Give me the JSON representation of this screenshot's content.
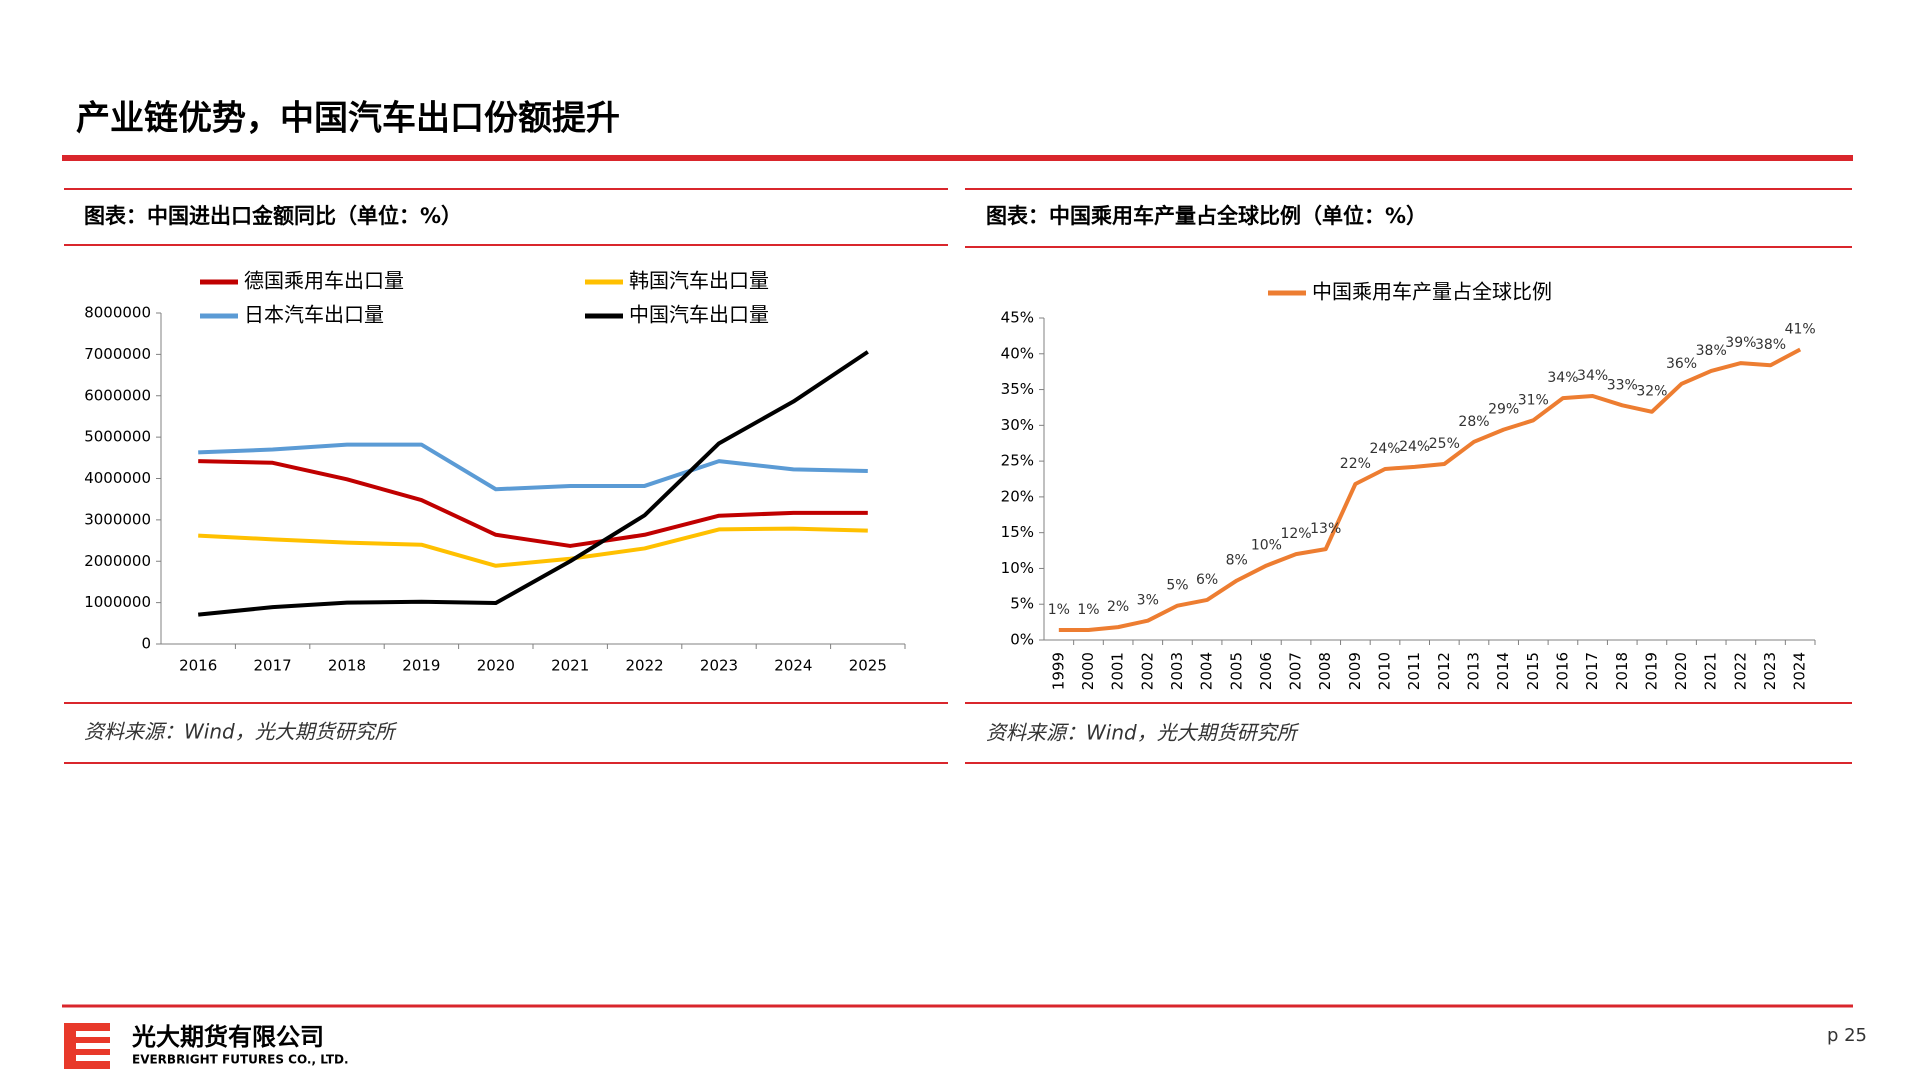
{
  "header": {
    "title": "产业链优势，中国汽车出口份额提升"
  },
  "chart_data": [
    {
      "type": "line",
      "title": "图表：中国进出口金额同比（单位：%）",
      "source": "资料来源：Wind，光大期货研究所",
      "categories": [
        "2016",
        "2017",
        "2018",
        "2019",
        "2020",
        "2021",
        "2022",
        "2023",
        "2024",
        "2025"
      ],
      "series": [
        {
          "name": "德国乘用车出口量",
          "color": "#c00000",
          "values": [
            4420000,
            4380000,
            3980000,
            3480000,
            2640000,
            2370000,
            2640000,
            3100000,
            3170000,
            3170000
          ]
        },
        {
          "name": "韩国汽车出口量",
          "color": "#ffc000",
          "values": [
            2620000,
            2530000,
            2450000,
            2400000,
            1890000,
            2060000,
            2310000,
            2770000,
            2790000,
            2740000
          ]
        },
        {
          "name": "日本汽车出口量",
          "color": "#5b9bd5",
          "values": [
            4630000,
            4700000,
            4820000,
            4820000,
            3740000,
            3820000,
            3820000,
            4420000,
            4220000,
            4180000
          ]
        },
        {
          "name": "中国汽车出口量",
          "color": "#000000",
          "values": [
            710000,
            890000,
            1000000,
            1020000,
            990000,
            2000000,
            3110000,
            4850000,
            5860000,
            7060000
          ]
        }
      ],
      "ylim": [
        0,
        8000000
      ],
      "yticks": [
        0,
        1000000,
        2000000,
        3000000,
        4000000,
        5000000,
        6000000,
        7000000,
        8000000
      ],
      "grid": false,
      "legend": "top"
    },
    {
      "type": "line",
      "title": "图表：中国乘用车产量占全球比例（单位：%）",
      "source": "资料来源：Wind，光大期货研究所",
      "categories": [
        "1999",
        "2000",
        "2001",
        "2002",
        "2003",
        "2004",
        "2005",
        "2006",
        "2007",
        "2008",
        "2009",
        "2010",
        "2011",
        "2012",
        "2013",
        "2014",
        "2015",
        "2016",
        "2017",
        "2018",
        "2019",
        "2020",
        "2021",
        "2022",
        "2023",
        "2024"
      ],
      "series": [
        {
          "name": "中国乘用车产量占全球比例",
          "color": "#ed7d31",
          "values": [
            1.4,
            1.4,
            1.8,
            2.7,
            4.8,
            5.6,
            8.3,
            10.4,
            12.0,
            12.7,
            21.8,
            23.9,
            24.2,
            24.6,
            27.7,
            29.4,
            30.7,
            33.8,
            34.1,
            32.8,
            31.9,
            35.8,
            37.6,
            38.7,
            38.4,
            40.6
          ],
          "value_labels": [
            "1%",
            "1%",
            "2%",
            "3%",
            "5%",
            "6%",
            "8%",
            "10%",
            "12%",
            "13%",
            "22%",
            "24%",
            "24%",
            "25%",
            "28%",
            "29%",
            "31%",
            "34%",
            "34%",
            "33%",
            "32%",
            "36%",
            "38%",
            "39%",
            "38%",
            "41%"
          ]
        }
      ],
      "ylim": [
        0,
        45
      ],
      "yticks": [
        {
          "value": 0,
          "label": "0%"
        },
        {
          "value": 5,
          "label": "5%"
        },
        {
          "value": 10,
          "label": "10%"
        },
        {
          "value": 15,
          "label": "15%"
        },
        {
          "value": 20,
          "label": "20%"
        },
        {
          "value": 25,
          "label": "25%"
        },
        {
          "value": 30,
          "label": "30%"
        },
        {
          "value": 35,
          "label": "35%"
        },
        {
          "value": 40,
          "label": "40%"
        },
        {
          "value": 45,
          "label": "45%"
        }
      ],
      "grid": false,
      "legend": "top",
      "rotate_x_labels": true
    }
  ],
  "footer": {
    "company": "光大期货有限公司",
    "company_en": "EVERBRIGHT FUTURES CO., LTD.",
    "page": "p 25"
  }
}
